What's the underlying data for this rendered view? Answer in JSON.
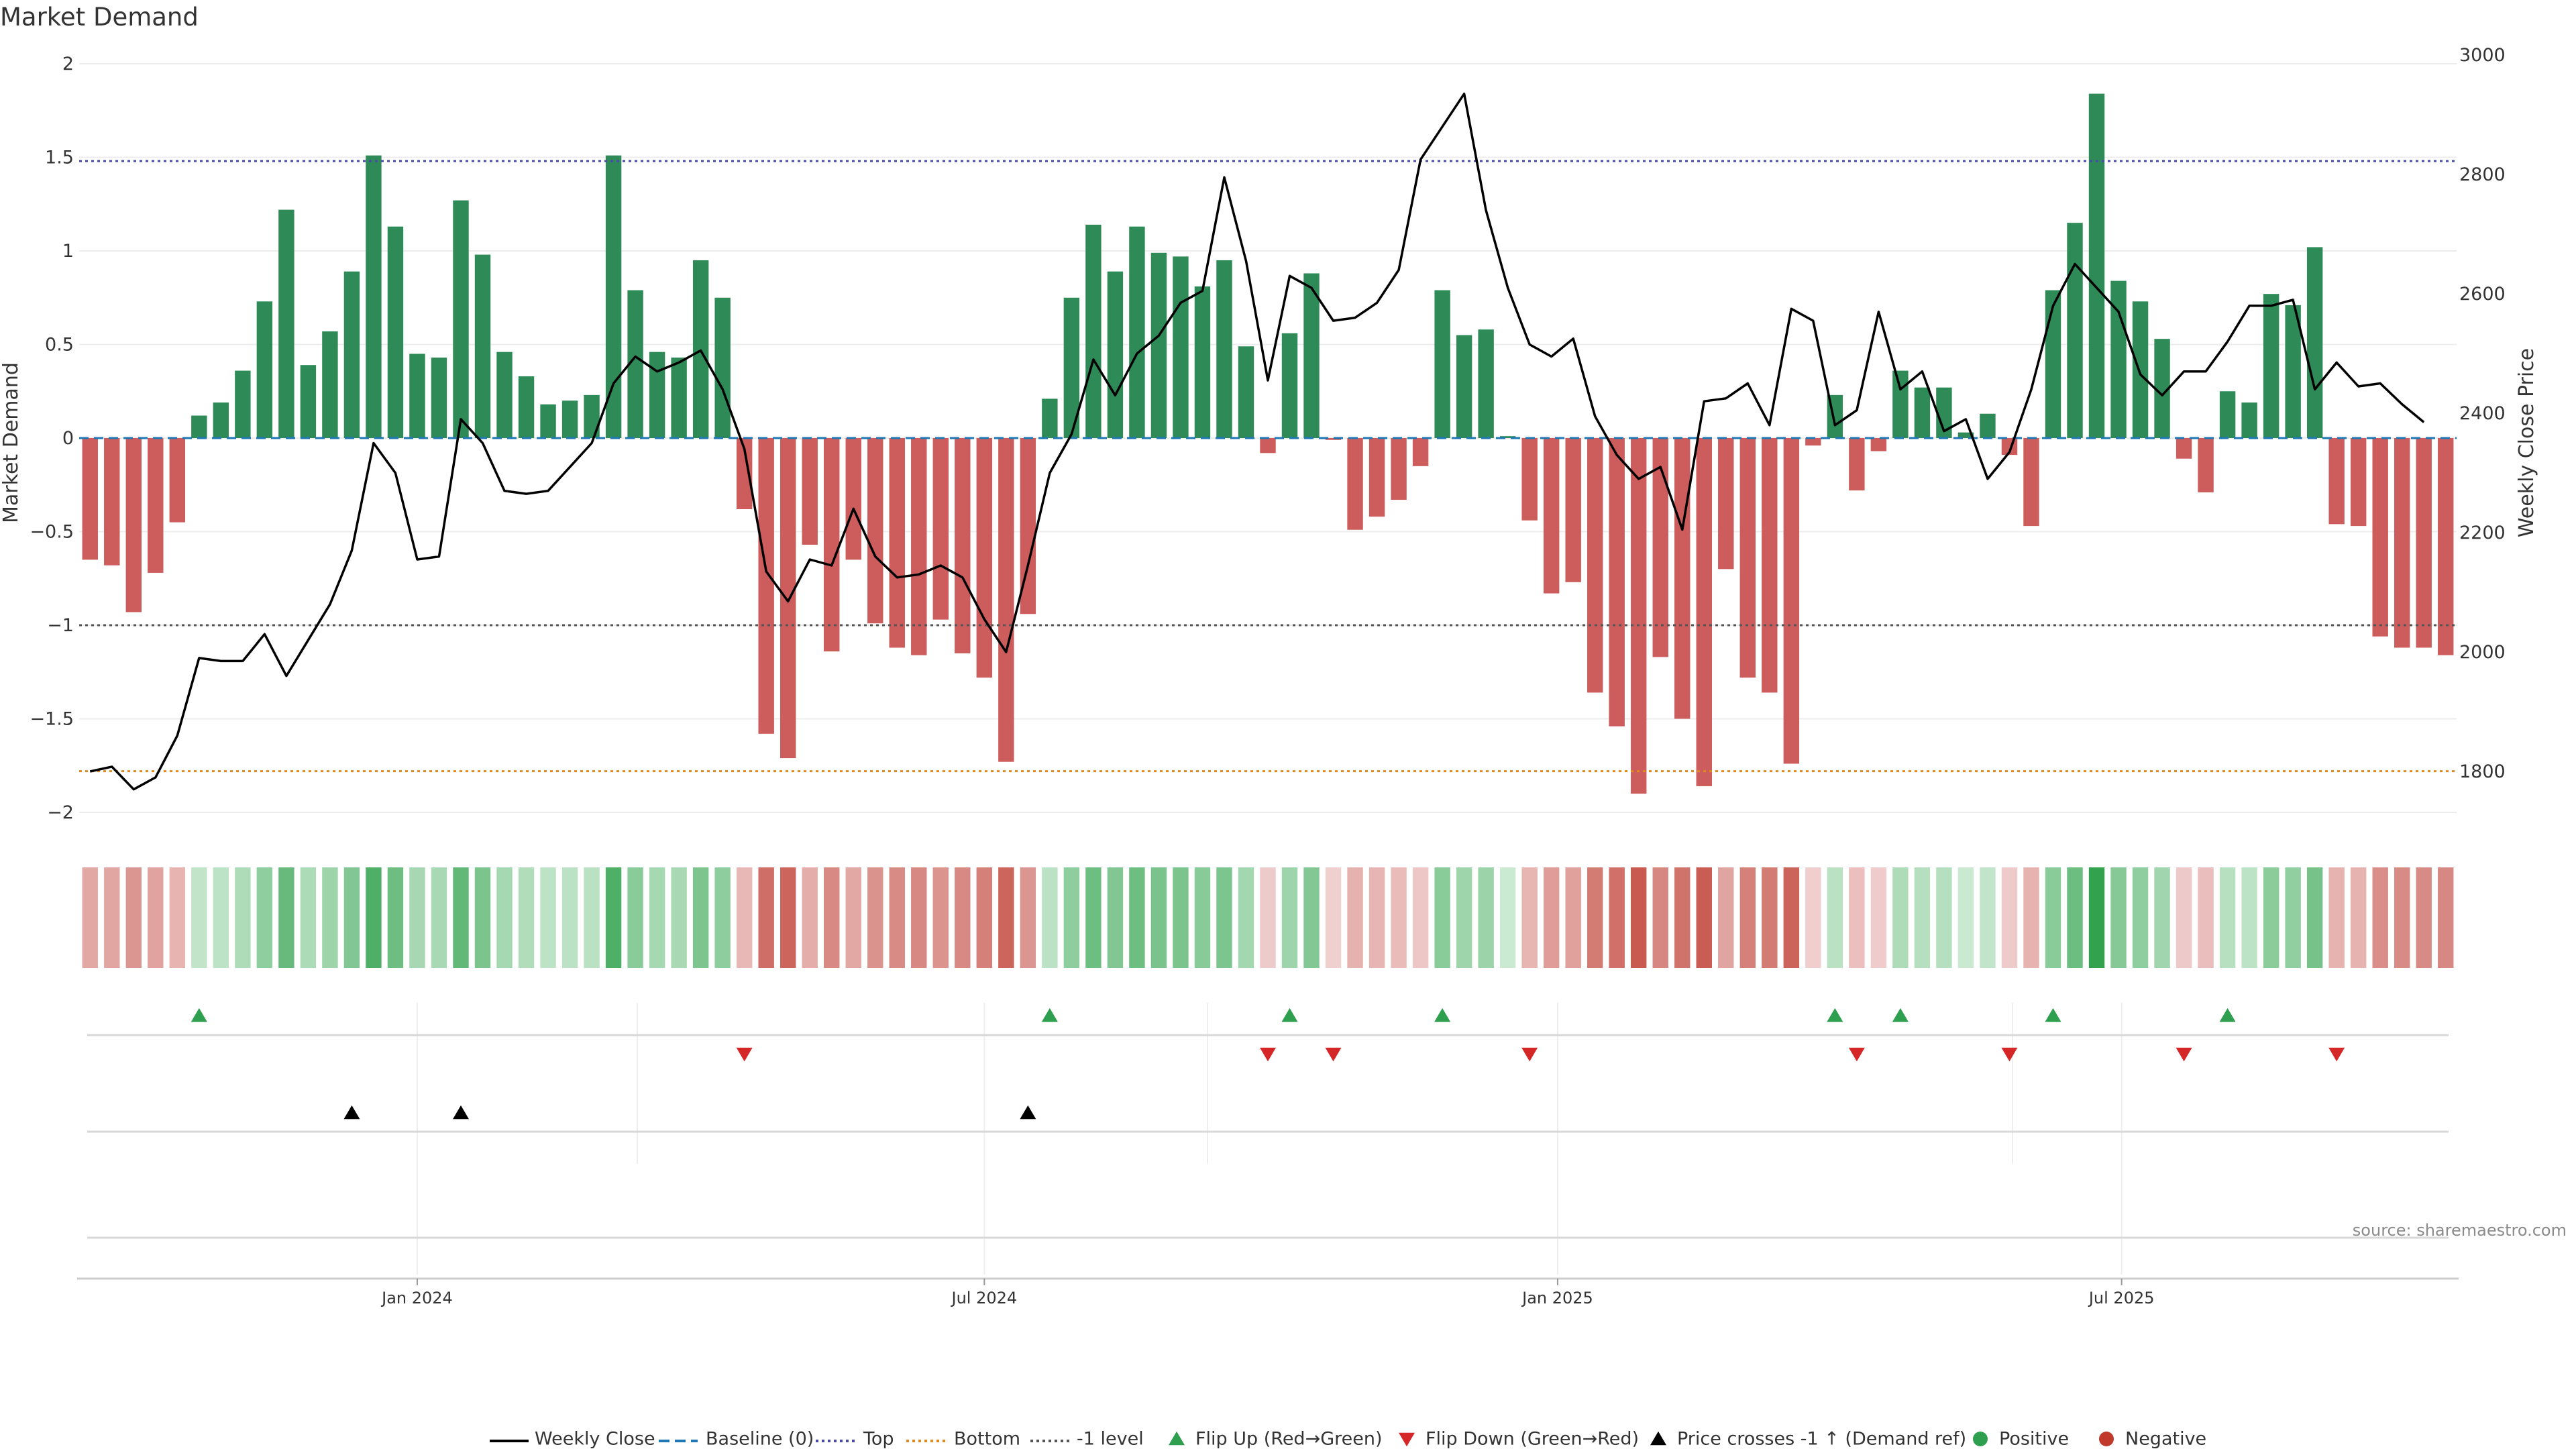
{
  "title": "Market Demand",
  "source": "source: sharemaestro.com",
  "chart_data": {
    "type": "bar",
    "title": "Market Demand",
    "ylabel": "Market Demand",
    "y2label": "Weekly Close Price",
    "xlabel": "",
    "ylim": [
      -2.2,
      2.2
    ],
    "y2lim": [
      1660,
      3010
    ],
    "y_ticks": [
      2,
      1.5,
      1,
      0.5,
      0,
      -0.5,
      -1,
      -1.5,
      -2
    ],
    "y_tick_labels": [
      "2",
      "1.5",
      "1",
      "0.5",
      "0",
      "−0.5",
      "−1",
      "−1.5",
      "−2"
    ],
    "y2_ticks": [
      3000,
      2800,
      2600,
      2400,
      2200,
      2000,
      1800
    ],
    "y2_tick_labels": [
      "3000",
      "2800",
      "2600",
      "2400",
      "2200",
      "2000",
      "1800"
    ],
    "x_start": "2023-09-18",
    "x_step_days": 7,
    "x_ticks": [
      {
        "label": "Jan 2024",
        "date": "2024-01-01"
      },
      {
        "label": "Jul 2024",
        "date": "2024-07-01"
      },
      {
        "label": "Jan 2025",
        "date": "2025-01-01"
      },
      {
        "label": "Jul 2025",
        "date": "2025-07-01"
      }
    ],
    "reference_lines": [
      {
        "name": "Baseline (0)",
        "axis": "left",
        "value": 0,
        "color": "#1f77b4",
        "style": "dashed"
      },
      {
        "name": "Top",
        "axis": "left",
        "value": 1.48,
        "color": "#4a4aa8",
        "style": "dotted"
      },
      {
        "name": "Bottom",
        "axis": "left",
        "value": -1.78,
        "color": "#e08a1e",
        "style": "dotted"
      },
      {
        "name": "-1 level",
        "axis": "left",
        "value": -1.0,
        "color": "#555555",
        "style": "dotted"
      }
    ],
    "series": [
      {
        "name": "Market Demand",
        "type": "bar",
        "axis": "left",
        "positive_color": "#2e8b57",
        "negative_color": "#cd5c5c",
        "values": [
          -0.65,
          -0.68,
          -0.93,
          -0.72,
          -0.45,
          0.12,
          0.19,
          0.36,
          0.73,
          1.22,
          0.39,
          0.57,
          0.89,
          1.51,
          1.13,
          0.45,
          0.43,
          1.27,
          0.98,
          0.46,
          0.33,
          0.18,
          0.2,
          0.23,
          1.51,
          0.79,
          0.46,
          0.43,
          0.95,
          0.75,
          -0.38,
          -1.58,
          -1.71,
          -0.57,
          -1.14,
          -0.65,
          -0.99,
          -1.12,
          -1.16,
          -0.97,
          -1.15,
          -1.28,
          -1.73,
          -0.94,
          0.21,
          0.75,
          1.14,
          0.89,
          1.13,
          0.99,
          0.97,
          0.81,
          0.95,
          0.49,
          -0.08,
          0.56,
          0.88,
          -0.01,
          -0.49,
          -0.42,
          -0.33,
          -0.15,
          0.79,
          0.55,
          0.58,
          0.01,
          -0.44,
          -0.83,
          -0.77,
          -1.36,
          -1.54,
          -1.9,
          -1.17,
          -1.5,
          -1.86,
          -0.7,
          -1.28,
          -1.36,
          -1.74,
          -0.04,
          0.23,
          -0.28,
          -0.07,
          0.36,
          0.27,
          0.27,
          0.03,
          0.13,
          -0.09,
          -0.47,
          0.79,
          1.15,
          1.84,
          0.84,
          0.73,
          0.53,
          -0.11,
          -0.29,
          0.25,
          0.19,
          0.77,
          0.71,
          1.02,
          -0.46,
          -0.47,
          -1.06,
          -1.12,
          -1.12,
          -1.16
        ]
      },
      {
        "name": "Weekly Close",
        "type": "line",
        "axis": "right",
        "color": "#000000",
        "values": [
          1800,
          1808,
          1770,
          1790,
          1860,
          1990,
          1985,
          1985,
          2030,
          1960,
          2020,
          2080,
          2170,
          2350,
          2300,
          2155,
          2160,
          2390,
          2350,
          2270,
          2265,
          2270,
          2310,
          2350,
          2450,
          2495,
          2470,
          2485,
          2505,
          2440,
          2340,
          2135,
          2085,
          2155,
          2145,
          2240,
          2160,
          2125,
          2130,
          2145,
          2125,
          2055,
          2000,
          2145,
          2300,
          2365,
          2490,
          2430,
          2500,
          2530,
          2585,
          2605,
          2795,
          2655,
          2455,
          2630,
          2610,
          2555,
          2560,
          2585,
          2640,
          2825,
          2880,
          2935,
          2740,
          2610,
          2515,
          2495,
          2525,
          2395,
          2330,
          2290,
          2310,
          2205,
          2420,
          2425,
          2450,
          2380,
          2575,
          2555,
          2380,
          2405,
          2570,
          2440,
          2470,
          2370,
          2390,
          2290,
          2335,
          2440,
          2580,
          2650,
          2610,
          2570,
          2465,
          2430,
          2470,
          2470,
          2520,
          2580,
          2580,
          2590,
          2440,
          2485,
          2445,
          2450,
          2415,
          2385
        ]
      }
    ],
    "flip_up_weeks": [
      5,
      44,
      55,
      62,
      80,
      83,
      90,
      98
    ],
    "flip_down_weeks": [
      30,
      54,
      57,
      66,
      81,
      88,
      96,
      103
    ],
    "price_cross_weeks": [
      12,
      17,
      43
    ],
    "legend": {
      "position": "bottom",
      "entries": [
        {
          "label": "Weekly Close",
          "marker": "solid-line",
          "color": "#000000"
        },
        {
          "label": "Baseline (0)",
          "marker": "dashed-line",
          "color": "#1f77b4"
        },
        {
          "label": "Top",
          "marker": "dotted-line",
          "color": "#4a4aa8"
        },
        {
          "label": "Bottom",
          "marker": "dotted-line",
          "color": "#e08a1e"
        },
        {
          "label": "-1 level",
          "marker": "dotted-line",
          "color": "#555555"
        },
        {
          "label": "Flip Up (Red→Green)",
          "marker": "triangle-up",
          "color": "#2e9e4f"
        },
        {
          "label": "Flip Down (Green→Red)",
          "marker": "triangle-down",
          "color": "#d62728"
        },
        {
          "label": "Price crosses -1 ↑ (Demand ref)",
          "marker": "triangle-up",
          "color": "#000000"
        },
        {
          "label": "Positive",
          "marker": "circle",
          "color": "#2e9e4f"
        },
        {
          "label": "Negative",
          "marker": "circle",
          "color": "#c0392b"
        }
      ]
    }
  }
}
